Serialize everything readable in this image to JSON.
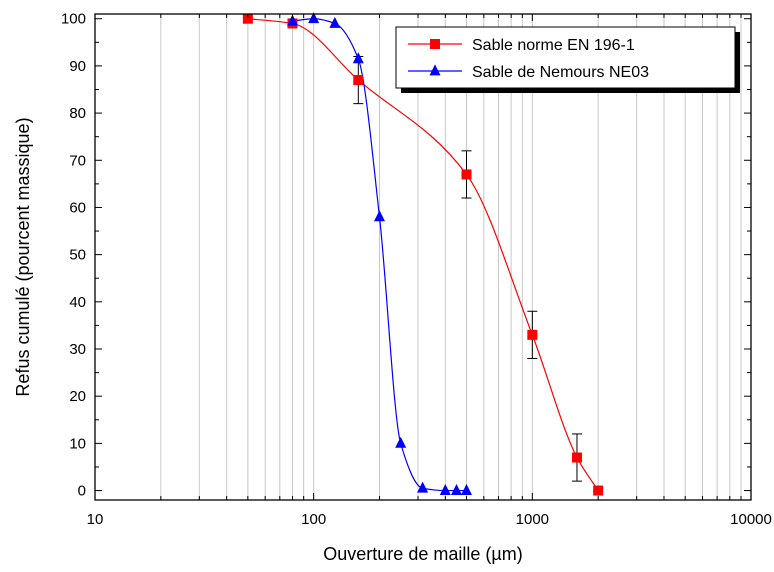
{
  "chart_data": {
    "type": "line",
    "xlabel": "Ouverture de maille (µm)",
    "ylabel": "Refus cumulé (pourcent massique)",
    "xscale": "log",
    "xlim": [
      10,
      10000
    ],
    "ylim": [
      -2,
      101
    ],
    "x_tick_labels": [
      "10",
      "100",
      "1000",
      "10000"
    ],
    "y_tick_labels": [
      "0",
      "10",
      "20",
      "30",
      "40",
      "50",
      "60",
      "70",
      "80",
      "90",
      "100"
    ],
    "grid": "vertical minor/major lines on x axis",
    "legend_position": "top-right",
    "series": [
      {
        "name": "Sable norme EN 196-1",
        "color": "#ff0000",
        "marker": "square",
        "x": [
          50,
          80,
          160,
          500,
          1000,
          1600,
          2000
        ],
        "y": [
          100,
          99,
          87,
          67,
          33,
          7,
          0
        ],
        "error": [
          0,
          0,
          5,
          5,
          5,
          5,
          0
        ]
      },
      {
        "name": "Sable de Nemours NE03",
        "color": "#0000ff",
        "marker": "triangle",
        "x": [
          80,
          100,
          125,
          160,
          200,
          250,
          315,
          400,
          450,
          500
        ],
        "y": [
          99.5,
          100,
          99,
          91.5,
          58,
          10,
          0.5,
          0,
          0,
          0
        ]
      }
    ]
  }
}
